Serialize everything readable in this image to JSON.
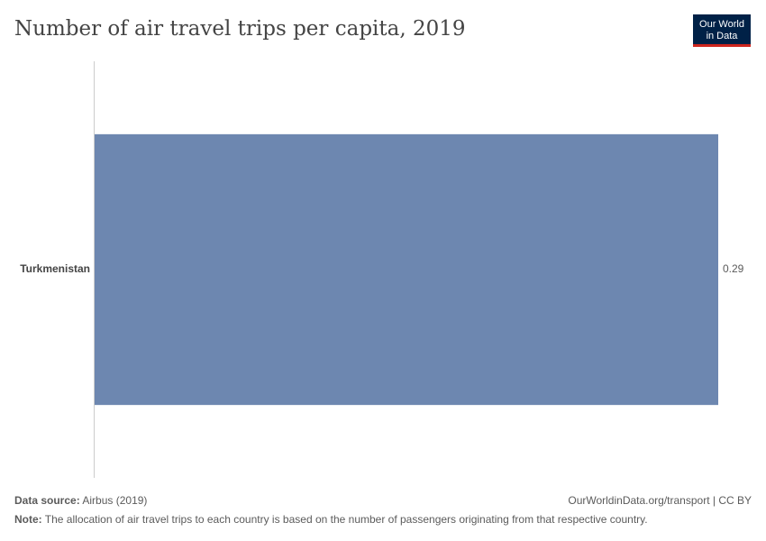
{
  "chart_data": {
    "type": "bar",
    "orientation": "horizontal",
    "title": "Number of air travel trips per capita, 2019",
    "logo": [
      "Our World",
      "in Data"
    ],
    "categories": [
      "Turkmenistan"
    ],
    "values": [
      0.29
    ],
    "color": "#6d87b0",
    "source_label": "Data source:",
    "source": "Airbus (2019)",
    "credit": "OurWorldinData.org/transport | CC BY",
    "note_label": "Note:",
    "note": "The allocation of air travel trips to each country is based on the number of passengers originating from that respective country."
  }
}
